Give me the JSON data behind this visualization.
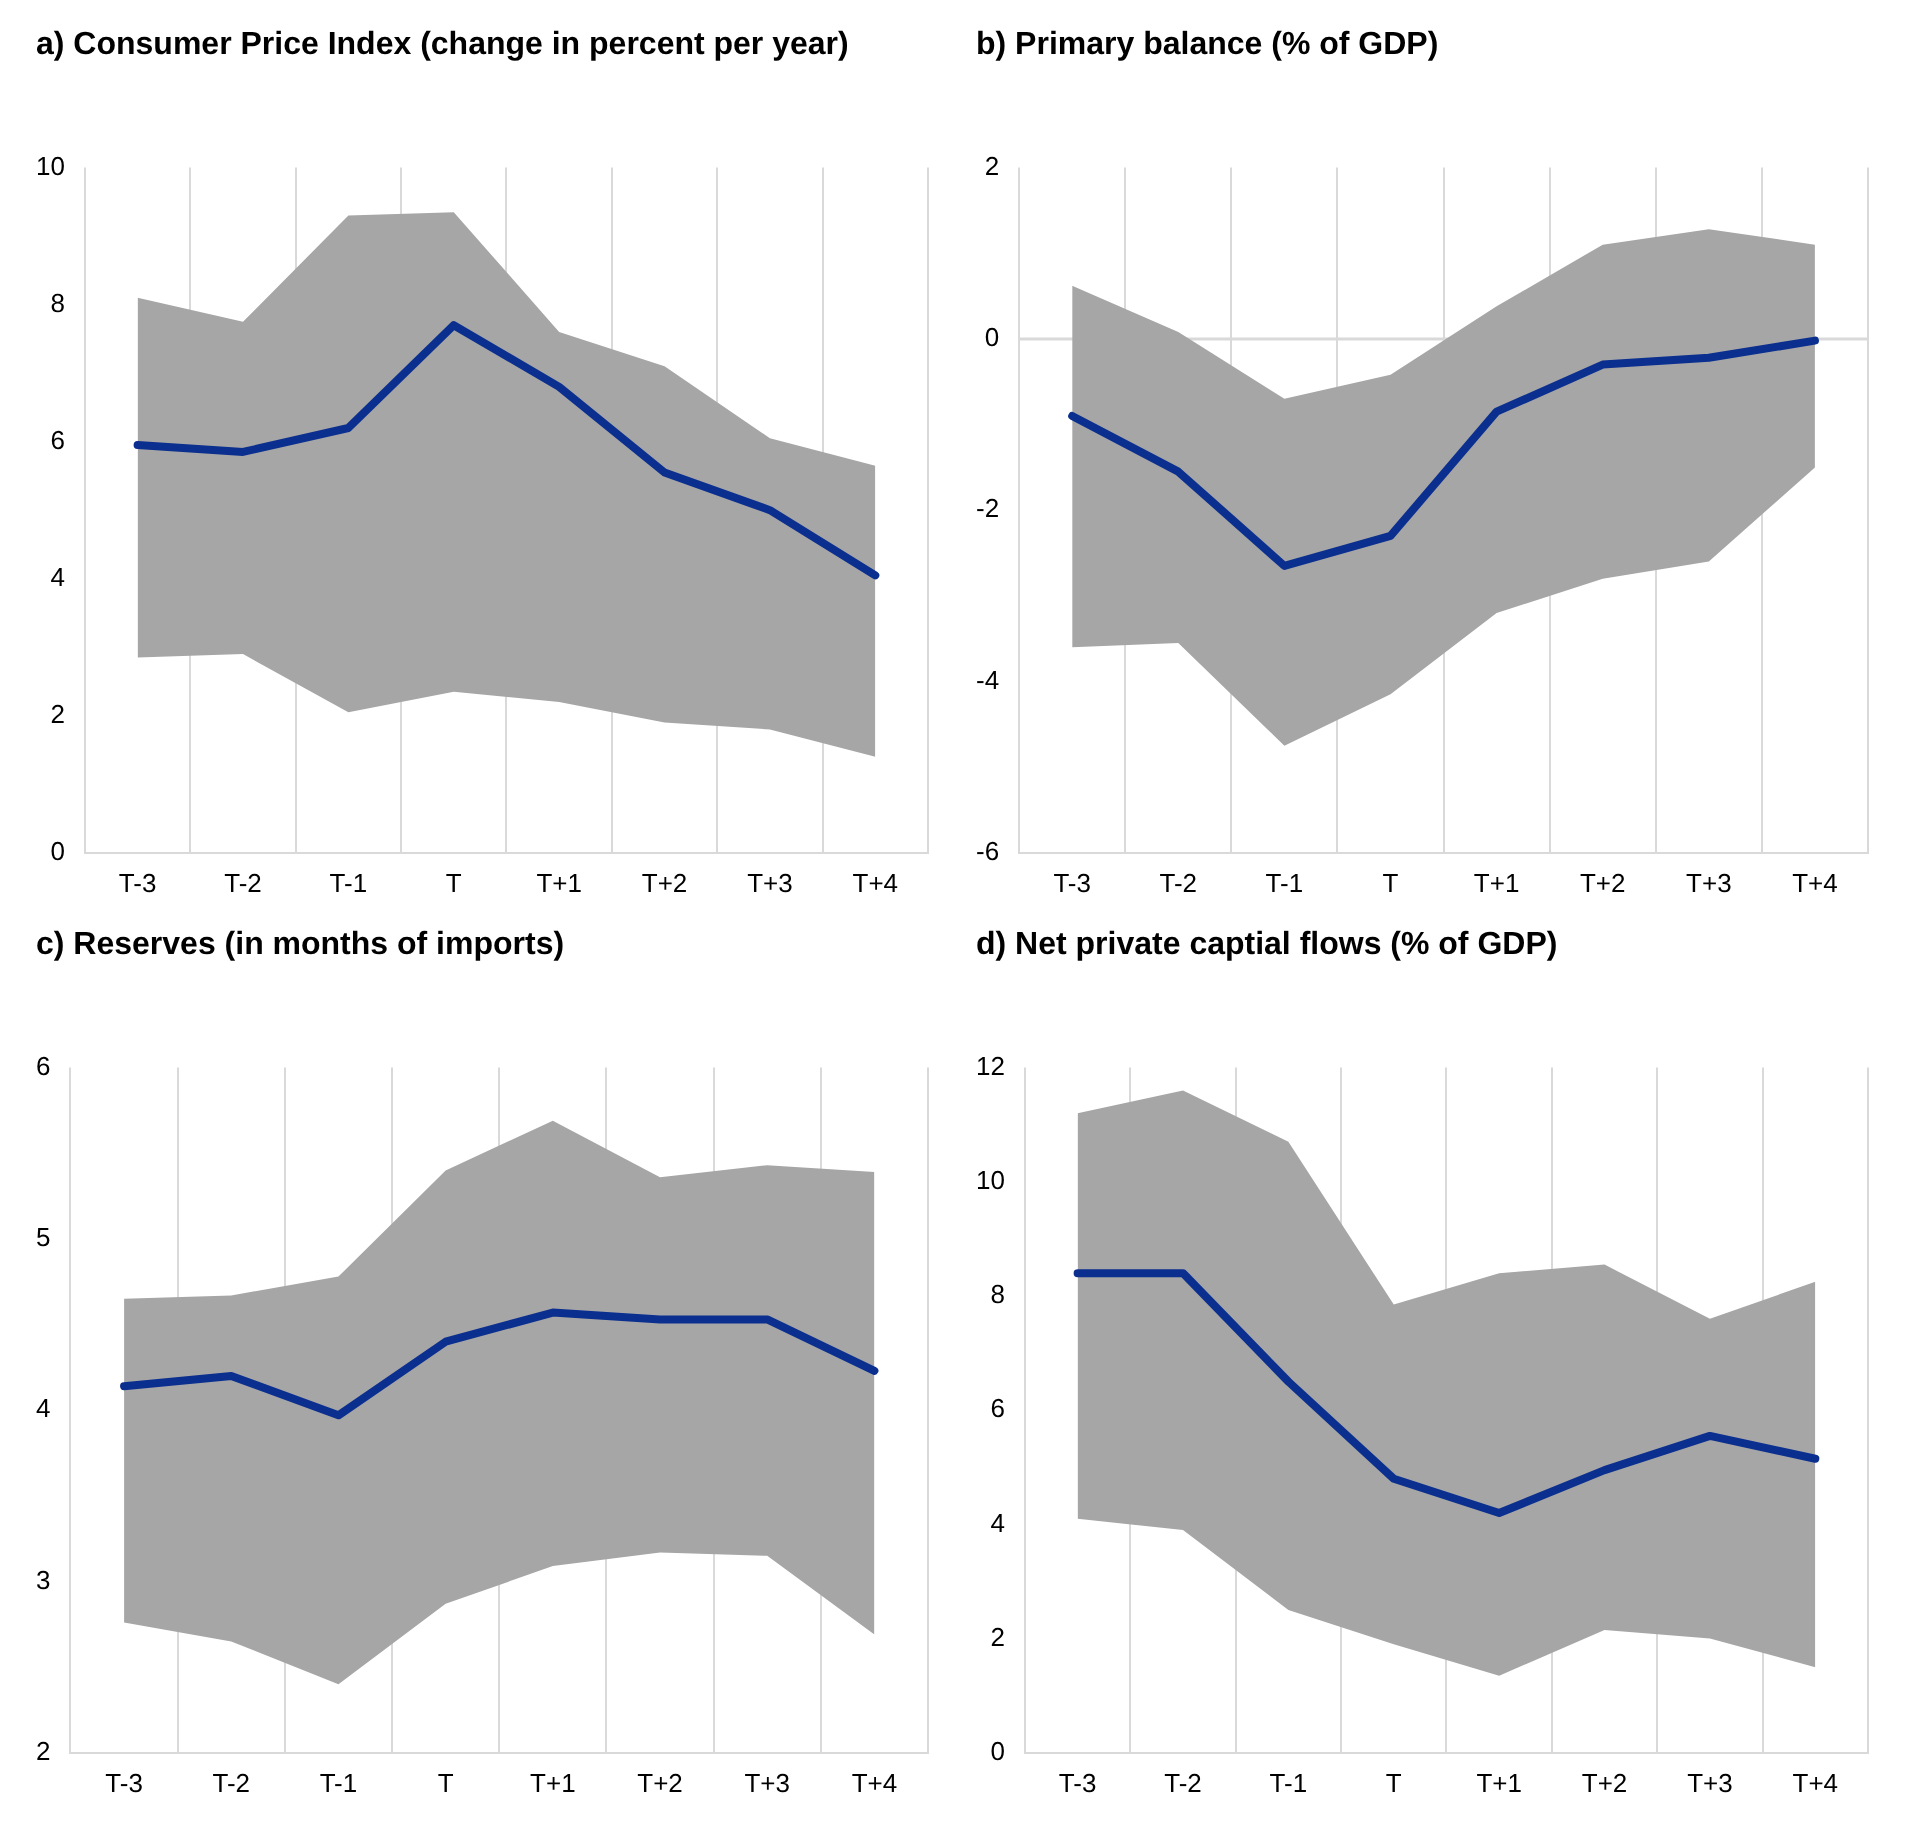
{
  "chart_data": [
    {
      "type": "line",
      "title": "a) Consumer Price Index (change in percent per year)",
      "categories": [
        "T-3",
        "T-2",
        "T-1",
        "T",
        "T+1",
        "T+2",
        "T+3",
        "T+4"
      ],
      "ylim": [
        0,
        10
      ],
      "yticks": [
        0,
        2,
        4,
        6,
        8,
        10
      ],
      "grid": "x",
      "legend": false,
      "marker": "none",
      "series": [
        {
          "color": "#0b2f8f",
          "values": [
            5.95,
            5.85,
            6.2,
            7.7,
            6.8,
            5.55,
            5.0,
            4.05
          ],
          "lower": [
            2.85,
            2.9,
            2.05,
            2.35,
            2.2,
            1.9,
            1.8,
            1.4
          ],
          "upper": [
            8.1,
            7.75,
            9.3,
            9.35,
            7.6,
            7.1,
            6.05,
            5.65
          ]
        }
      ]
    },
    {
      "type": "line",
      "title": "b) Primary balance (% of GDP)",
      "categories": [
        "T-3",
        "T-2",
        "T-1",
        "T",
        "T+1",
        "T+2",
        "T+3",
        "T+4"
      ],
      "ylim": [
        -6,
        2
      ],
      "yticks": [
        -6,
        -4,
        -2,
        0,
        2
      ],
      "grid": "x",
      "legend": false,
      "marker": "none",
      "ref_lines": [
        {
          "axis": "y",
          "value": 0,
          "color": "#d9d9d9"
        }
      ],
      "series": [
        {
          "color": "#0b2f8f",
          "values": [
            -0.9,
            -1.55,
            -2.65,
            -2.3,
            -0.85,
            -0.3,
            -0.22,
            -0.02
          ],
          "lower": [
            -3.6,
            -3.55,
            -4.75,
            -4.15,
            -3.2,
            -2.8,
            -2.6,
            -1.5
          ],
          "upper": [
            0.62,
            0.08,
            -0.7,
            -0.42,
            0.38,
            1.1,
            1.28,
            1.1
          ]
        }
      ]
    },
    {
      "type": "line",
      "title": "c) Reserves (in months of imports)",
      "categories": [
        "T-3",
        "T-2",
        "T-1",
        "T",
        "T+1",
        "T+2",
        "T+3",
        "T+4"
      ],
      "ylim": [
        2,
        6
      ],
      "yticks": [
        2,
        3,
        4,
        5,
        6
      ],
      "grid": "x",
      "legend": false,
      "marker": "none",
      "series": [
        {
          "color": "#0b2f8f",
          "values": [
            4.14,
            4.2,
            3.97,
            4.4,
            4.57,
            4.53,
            4.53,
            4.23
          ],
          "lower": [
            2.76,
            2.65,
            2.4,
            2.87,
            3.09,
            3.17,
            3.15,
            2.69
          ],
          "upper": [
            4.65,
            4.67,
            4.78,
            5.4,
            5.69,
            5.36,
            5.43,
            5.39
          ]
        }
      ]
    },
    {
      "type": "line",
      "title": "d) Net private captial flows (% of GDP)",
      "categories": [
        "T-3",
        "T-2",
        "T-1",
        "T",
        "T+1",
        "T+2",
        "T+3",
        "T+4"
      ],
      "ylim": [
        0,
        12
      ],
      "yticks": [
        0,
        2,
        4,
        6,
        8,
        10,
        12
      ],
      "grid": "x",
      "legend": false,
      "marker": "none",
      "series": [
        {
          "color": "#0b2f8f",
          "values": [
            8.4,
            8.4,
            6.5,
            4.8,
            4.2,
            4.95,
            5.55,
            5.15
          ],
          "lower": [
            4.1,
            3.9,
            2.5,
            1.9,
            1.35,
            2.15,
            2.0,
            1.5
          ],
          "upper": [
            11.2,
            11.6,
            10.7,
            7.85,
            8.4,
            8.55,
            7.6,
            8.25
          ]
        }
      ]
    }
  ]
}
